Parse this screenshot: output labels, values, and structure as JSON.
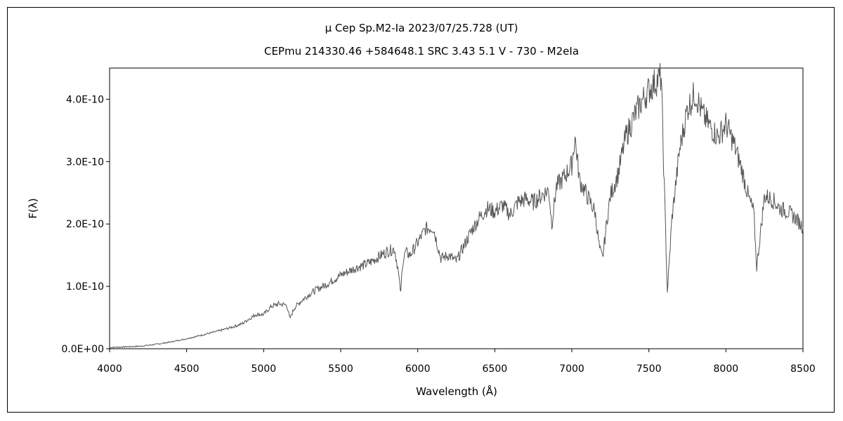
{
  "chart_data": {
    "type": "line",
    "title": "μ Cep   Sp.M2-Ia   2023/07/25.728 (UT)",
    "subtitle": "CEPmu 214330.46 +584648.1 SRC 3.43 5.1 V - 730 - M2eIa",
    "xlabel": "Wavelength (Å)",
    "ylabel": "F(λ)",
    "xlim": [
      4000,
      8500
    ],
    "ylim": [
      0,
      4.5e-10
    ],
    "xticks": [
      4000,
      4500,
      5000,
      5500,
      6000,
      6500,
      7000,
      7500,
      8000,
      8500
    ],
    "yticks": [
      0,
      1e-10,
      2e-10,
      3e-10,
      4e-10
    ],
    "xtick_labels": [
      "4000",
      "4500",
      "5000",
      "5500",
      "6000",
      "6500",
      "7000",
      "7500",
      "8000",
      "8500"
    ],
    "ytick_labels": [
      "0.0E+00",
      "1.0E-10",
      "2.0E-10",
      "3.0E-10",
      "4.0E-10"
    ],
    "grid": false,
    "line_color": "#555555",
    "series": [
      {
        "x": [
          4000,
          4100,
          4200,
          4300,
          4400,
          4500,
          4600,
          4700,
          4800,
          4860,
          4900,
          4950,
          5000,
          5050,
          5100,
          5150,
          5170,
          5200,
          5250,
          5300,
          5350,
          5400,
          5450,
          5500,
          5550,
          5600,
          5650,
          5700,
          5750,
          5800,
          5850,
          5870,
          5890,
          5900,
          5920,
          5950,
          6000,
          6050,
          6100,
          6150,
          6200,
          6250,
          6300,
          6350,
          6400,
          6450,
          6500,
          6550,
          6600,
          6650,
          6700,
          6750,
          6800,
          6850,
          6870,
          6900,
          6950,
          7000,
          7020,
          7050,
          7100,
          7150,
          7180,
          7200,
          7230,
          7250,
          7300,
          7350,
          7400,
          7450,
          7500,
          7550,
          7580,
          7600,
          7620,
          7650,
          7700,
          7750,
          7800,
          7850,
          7900,
          7950,
          8000,
          8050,
          8100,
          8150,
          8180,
          8200,
          8250,
          8300,
          8350,
          8400,
          8450,
          8500
        ],
        "y": [
          2e-12,
          3e-12,
          4e-12,
          7e-12,
          1.1e-11,
          1.6e-11,
          2.2e-11,
          2.8e-11,
          3.5e-11,
          4e-11,
          4.7e-11,
          5.5e-11,
          5.5e-11,
          6.8e-11,
          7.2e-11,
          7e-11,
          4.8e-11,
          6.6e-11,
          7.8e-11,
          8.8e-11,
          9.6e-11,
          1.02e-10,
          1.1e-10,
          1.18e-10,
          1.24e-10,
          1.3e-10,
          1.34e-10,
          1.4e-10,
          1.48e-10,
          1.56e-10,
          1.6e-10,
          1.3e-10,
          8.8e-11,
          1.35e-10,
          1.55e-10,
          1.5e-10,
          1.7e-10,
          1.92e-10,
          1.95e-10,
          1.45e-10,
          1.5e-10,
          1.4e-10,
          1.65e-10,
          1.9e-10,
          2.1e-10,
          2.25e-10,
          2.2e-10,
          2.3e-10,
          2.15e-10,
          2.35e-10,
          2.4e-10,
          2.35e-10,
          2.45e-10,
          2.55e-10,
          2e-10,
          2.6e-10,
          2.75e-10,
          2.95e-10,
          3.4e-10,
          2.7e-10,
          2.45e-10,
          2.2e-10,
          1.6e-10,
          1.45e-10,
          2.1e-10,
          2.45e-10,
          2.8e-10,
          3.4e-10,
          3.7e-10,
          3.95e-10,
          4.15e-10,
          4.3e-10,
          4.35e-10,
          2.6e-10,
          9e-11,
          2.1e-10,
          3.2e-10,
          3.85e-10,
          4.1e-10,
          3.75e-10,
          3.55e-10,
          3.4e-10,
          3.6e-10,
          3.3e-10,
          2.9e-10,
          2.4e-10,
          2.2e-10,
          1.3e-10,
          2.45e-10,
          2.4e-10,
          2.25e-10,
          2.2e-10,
          2.1e-10,
          1.95e-10
        ]
      }
    ]
  }
}
